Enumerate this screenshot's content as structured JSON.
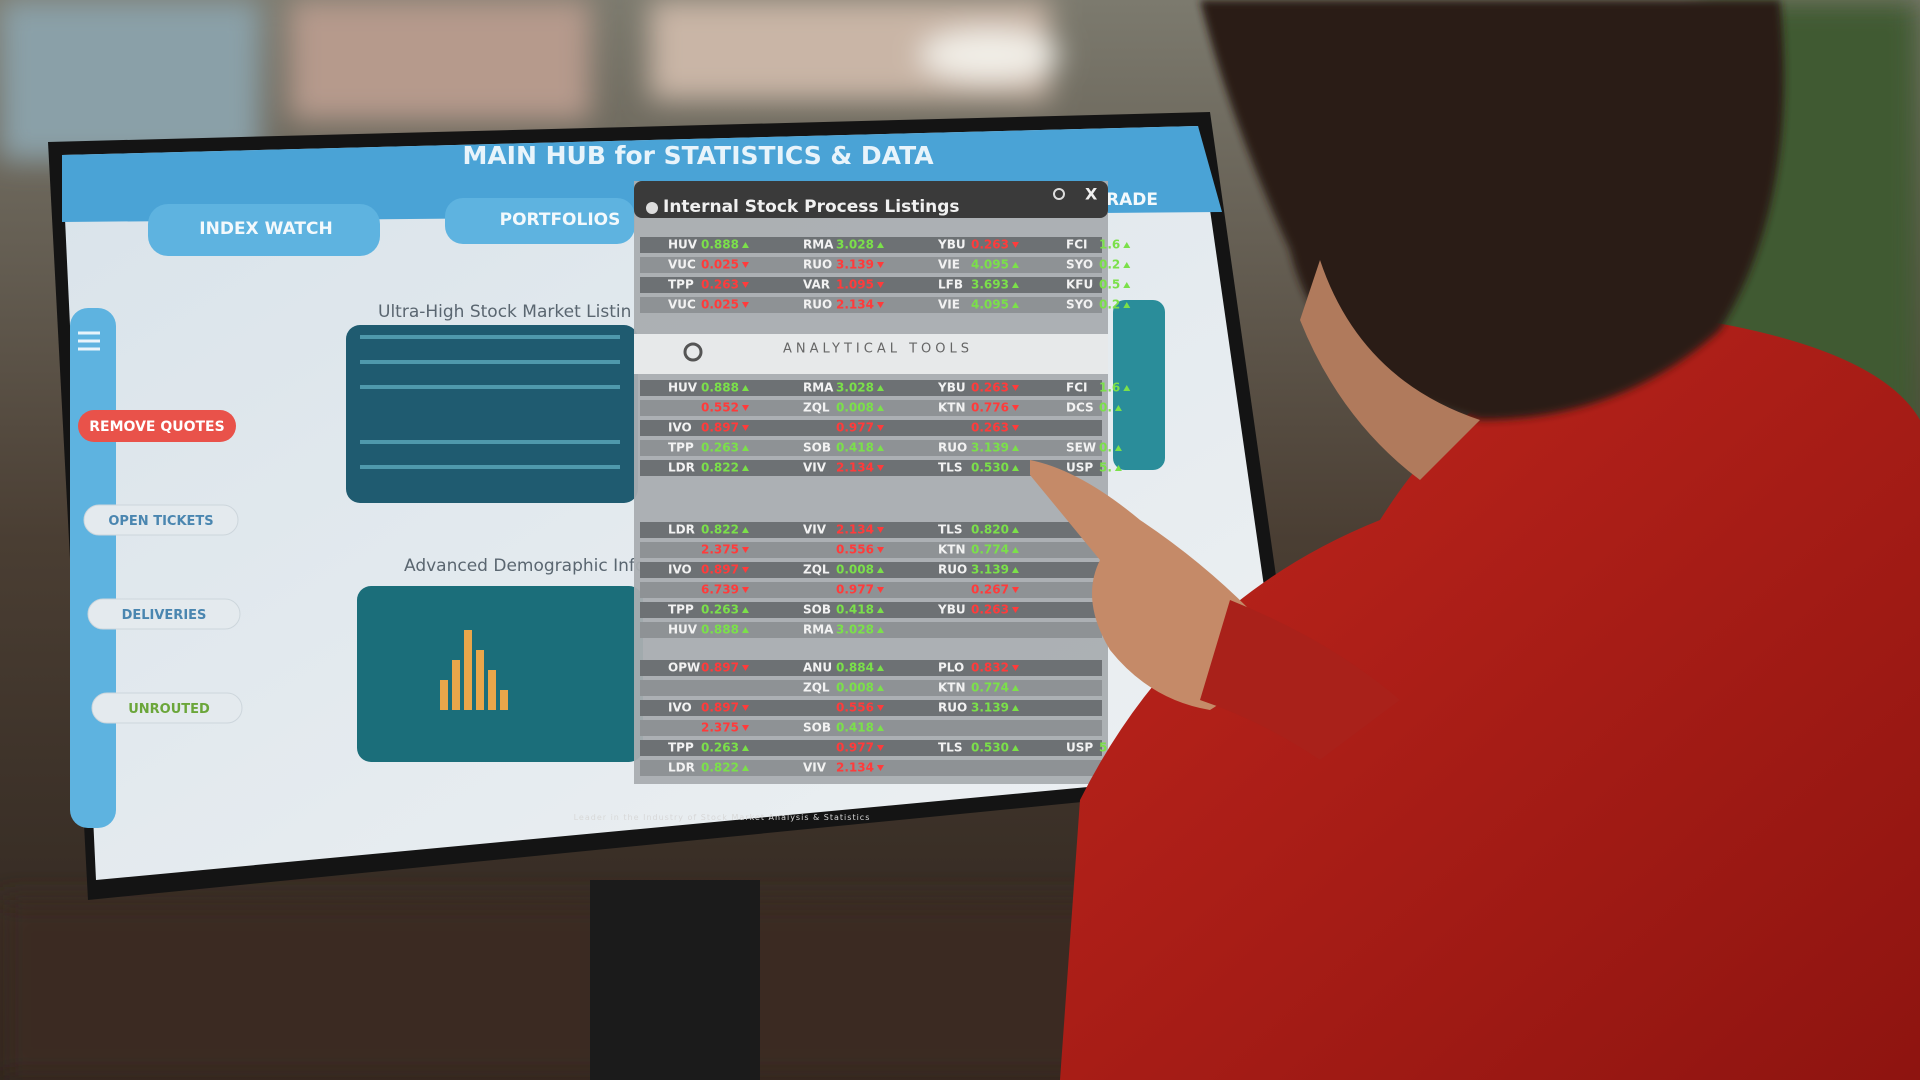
{
  "header": {
    "title": "MAIN HUB for STATISTICS & DATA",
    "tabs": [
      "INDEX WATCH",
      "PORTFOLIOS",
      "RADE"
    ]
  },
  "sidebar": {
    "buttons": [
      "REMOVE QUOTES",
      "OPEN TICKETS",
      "DELIVERIES",
      "UNROUTED"
    ]
  },
  "panels": [
    "Ultra-High Stock Market Listin",
    "Advanced Demographic Info"
  ],
  "popup": {
    "title": "Internal Stock Process Listings",
    "close": "X",
    "tools_label": "ANALYTICAL TOOLS",
    "groups": [
      [
        [
          {
            "sym": "HUV",
            "val": "0.888",
            "dir": "up"
          },
          {
            "sym": "RMA",
            "val": "3.028",
            "dir": "up"
          },
          {
            "sym": "YBU",
            "val": "0.263",
            "dir": "down"
          },
          {
            "sym": "FCI",
            "val": "1.6",
            "dir": "up"
          }
        ],
        [
          {
            "sym": "VUC",
            "val": "0.025",
            "dir": "down"
          },
          {
            "sym": "RUO",
            "val": "3.139",
            "dir": "down"
          },
          {
            "sym": "VIE",
            "val": "4.095",
            "dir": "up"
          },
          {
            "sym": "SYO",
            "val": "0.2",
            "dir": "up"
          }
        ],
        [
          {
            "sym": "TPP",
            "val": "0.263",
            "dir": "down"
          },
          {
            "sym": "VAR",
            "val": "1.095",
            "dir": "down"
          },
          {
            "sym": "LFB",
            "val": "3.693",
            "dir": "up"
          },
          {
            "sym": "KFU",
            "val": "0.5",
            "dir": "up"
          }
        ],
        [
          {
            "sym": "VUC",
            "val": "0.025",
            "dir": "down"
          },
          {
            "sym": "RUO",
            "val": "2.134",
            "dir": "down"
          },
          {
            "sym": "VIE",
            "val": "4.095",
            "dir": "up"
          },
          {
            "sym": "SYO",
            "val": "0.2",
            "dir": "up"
          }
        ]
      ],
      [
        [
          {
            "sym": "HUV",
            "val": "0.888",
            "dir": "up"
          },
          {
            "sym": "RMA",
            "val": "3.028",
            "dir": "up"
          },
          {
            "sym": "YBU",
            "val": "0.263",
            "dir": "down"
          },
          {
            "sym": "FCI",
            "val": "1.6",
            "dir": "up"
          }
        ],
        [
          {
            "val": "0.552",
            "dir": "down"
          },
          {
            "sym": "ZQL",
            "val": "0.008",
            "dir": "up"
          },
          {
            "sym": "KTN",
            "val": "0.776",
            "dir": "down"
          },
          {
            "sym": "DCS",
            "val": "0.",
            "dir": "up"
          }
        ],
        [
          {
            "sym": "IVO",
            "val": "0.897",
            "dir": "down"
          },
          {
            "val": "0.977",
            "dir": "down"
          },
          {
            "val": "0.263",
            "dir": "down"
          },
          null
        ],
        [
          {
            "sym": "TPP",
            "val": "0.263",
            "dir": "up"
          },
          {
            "sym": "SOB",
            "val": "0.418",
            "dir": "up"
          },
          {
            "sym": "RUO",
            "val": "3.139",
            "dir": "up"
          },
          {
            "sym": "SEW",
            "val": "0.",
            "dir": "up"
          }
        ],
        [
          {
            "sym": "LDR",
            "val": "0.822",
            "dir": "up"
          },
          {
            "sym": "VIV",
            "val": "2.134",
            "dir": "down"
          },
          {
            "sym": "TLS",
            "val": "0.530",
            "dir": "up"
          },
          {
            "sym": "USP",
            "val": "5.",
            "dir": "up"
          }
        ]
      ],
      [
        [
          {
            "sym": "LDR",
            "val": "0.822",
            "dir": "up"
          },
          {
            "sym": "VIV",
            "val": "2.134",
            "dir": "down"
          },
          {
            "sym": "TLS",
            "val": "0.820",
            "dir": "up"
          },
          null
        ],
        [
          {
            "val": "2.375",
            "dir": "down"
          },
          {
            "val": "0.556",
            "dir": "down"
          },
          {
            "sym": "KTN",
            "val": "0.774",
            "dir": "up"
          },
          null
        ],
        [
          {
            "sym": "IVO",
            "val": "0.897",
            "dir": "down"
          },
          {
            "sym": "ZQL",
            "val": "0.008",
            "dir": "up"
          },
          {
            "sym": "RUO",
            "val": "3.139",
            "dir": "up"
          },
          null
        ],
        [
          {
            "val": "6.739",
            "dir": "down"
          },
          {
            "val": "0.977",
            "dir": "down"
          },
          {
            "val": "0.267",
            "dir": "down"
          },
          null
        ],
        [
          {
            "sym": "TPP",
            "val": "0.263",
            "dir": "up"
          },
          {
            "sym": "SOB",
            "val": "0.418",
            "dir": "up"
          },
          {
            "sym": "YBU",
            "val": "0.263",
            "dir": "down"
          },
          null
        ],
        [
          {
            "sym": "HUV",
            "val": "0.888",
            "dir": "up"
          },
          {
            "sym": "RMA",
            "val": "3.028",
            "dir": "up"
          },
          null,
          null
        ]
      ],
      [
        [
          {
            "sym": "OPW",
            "val": "0.897",
            "dir": "down"
          },
          {
            "sym": "ANU",
            "val": "0.884",
            "dir": "up"
          },
          {
            "sym": "PLO",
            "val": "0.832",
            "dir": "down"
          },
          null
        ],
        [
          null,
          {
            "sym": "ZQL",
            "val": "0.008",
            "dir": "up"
          },
          {
            "sym": "KTN",
            "val": "0.774",
            "dir": "up"
          },
          null
        ],
        [
          {
            "sym": "IVO",
            "val": "0.897",
            "dir": "down"
          },
          {
            "val": "0.556",
            "dir": "down"
          },
          {
            "sym": "RUO",
            "val": "3.139",
            "dir": "up"
          },
          null
        ],
        [
          {
            "val": "2.375",
            "dir": "down"
          },
          {
            "sym": "SOB",
            "val": "0.418",
            "dir": "up"
          },
          null,
          null
        ],
        [
          {
            "sym": "TPP",
            "val": "0.263",
            "dir": "up"
          },
          {
            "val": "0.977",
            "dir": "down"
          },
          {
            "sym": "TLS",
            "val": "0.530",
            "dir": "up"
          },
          {
            "sym": "USP",
            "val": "5.",
            "dir": "up"
          }
        ],
        [
          {
            "sym": "LDR",
            "val": "0.822",
            "dir": "up"
          },
          {
            "sym": "VIV",
            "val": "2.134",
            "dir": "down"
          },
          null,
          null
        ]
      ]
    ]
  },
  "footer": "Leader in the Industry of Stock Market Analysis & Statistics"
}
